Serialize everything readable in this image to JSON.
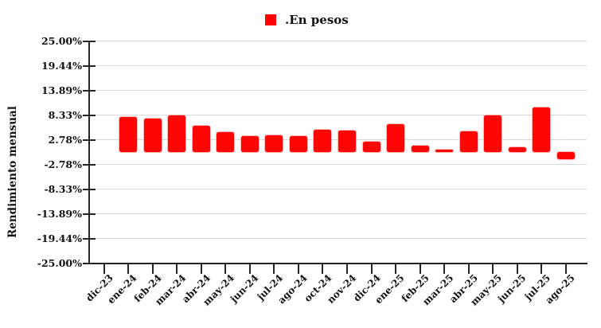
{
  "legend": {
    "label": ".En pesos",
    "swatch_color": "#ff0000"
  },
  "y_axis": {
    "title": "Rendimiento mensual"
  },
  "chart_data": {
    "type": "bar",
    "title": "",
    "xlabel": "",
    "ylabel": "Rendimiento mensual",
    "legend_entries": [
      ".En pesos"
    ],
    "legend_position": "top-center",
    "grid": "horizontal",
    "bar_color": "#ff0000",
    "background_color": "#ffffff",
    "ylim": [
      -25,
      25
    ],
    "ytick_values": [
      25,
      19.44,
      13.89,
      8.33,
      2.78,
      -2.78,
      -8.33,
      -13.89,
      -19.44,
      -25
    ],
    "ytick_labels": [
      "25.00%",
      "19.44%",
      "13.89%",
      "8.33%",
      "2.78%",
      "-2.78%",
      "-8.33%",
      "-13.89%",
      "-19.44%",
      "-25.00%"
    ],
    "categories": [
      "dic-23",
      "ene-24",
      "feb-24",
      "mar-24",
      "abr-24",
      "may-24",
      "jun-24",
      "jul-24",
      "ago-24",
      "oct-24",
      "nov-24",
      "dic-24",
      "ene-25",
      "feb-25",
      "mar-25",
      "abr-25",
      "may-25",
      "jun-25",
      "jul-25",
      "ago-25"
    ],
    "values": [
      null,
      7.9,
      7.6,
      8.2,
      6.0,
      4.4,
      3.5,
      3.8,
      3.6,
      5.1,
      4.8,
      2.4,
      6.3,
      1.4,
      0.5,
      4.6,
      8.2,
      1.1,
      10.0,
      -1.7
    ]
  }
}
